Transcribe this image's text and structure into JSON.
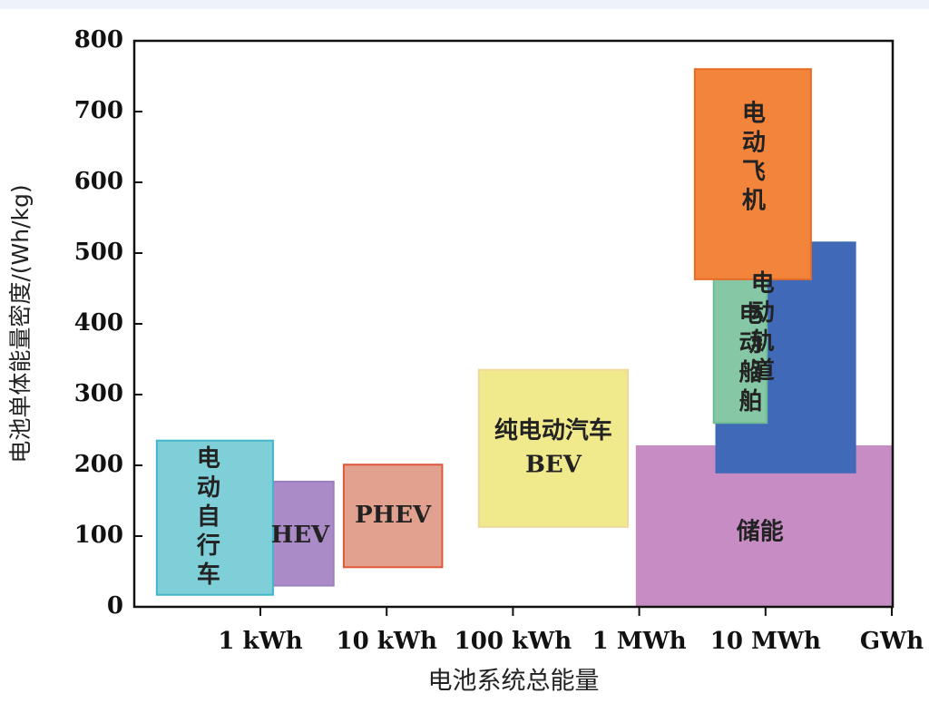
{
  "chart_data": {
    "type": "bubble-region",
    "title": "",
    "xlabel": "电池系统总能量",
    "ylabel": "电池单体能量密度/(Wh/kg)",
    "ylim": [
      0,
      800
    ],
    "yticks": [
      0,
      100,
      200,
      300,
      400,
      500,
      600,
      700,
      800
    ],
    "xlim": [
      -0.85,
      5.0
    ],
    "xticks": [
      {
        "label": "1 kWh",
        "value": 0
      },
      {
        "label": "10 kWh",
        "value": 1
      },
      {
        "label": "100 kWh",
        "value": 2
      },
      {
        "label": "1 MWh",
        "value": 3
      },
      {
        "label": "10 MWh",
        "value": 4
      },
      {
        "label": "GWh",
        "value": 5
      }
    ],
    "x_unit_note": "x values are log10(energy / 1 kWh)",
    "regions": [
      {
        "name": "储能",
        "label_lines": [
          "储能"
        ],
        "x": [
          2.98,
          5.0
        ],
        "y": [
          0,
          227
        ],
        "fill": "#c68cc3",
        "stroke": "#c68cc3",
        "orient": "h"
      },
      {
        "name": "HEV",
        "label_lines": [
          "HEV"
        ],
        "x": [
          0.1,
          0.58
        ],
        "y": [
          30,
          177
        ],
        "fill": "#ab8bc7",
        "stroke": "#9c7fc1",
        "orient": "h"
      },
      {
        "name": "电动自行车",
        "label_lines": [
          "电",
          "动",
          "自",
          "行",
          "车"
        ],
        "x": [
          -0.82,
          0.1
        ],
        "y": [
          17,
          235
        ],
        "fill": "#7fcfd8",
        "stroke": "#41b6cc",
        "orient": "v"
      },
      {
        "name": "PHEV",
        "label_lines": [
          "PHEV"
        ],
        "x": [
          0.66,
          1.44
        ],
        "y": [
          56,
          201
        ],
        "fill": "#e2a18e",
        "stroke": "#e0583a",
        "orient": "h"
      },
      {
        "name": "纯电动汽车 BEV",
        "label_lines": [
          "纯电动汽车",
          "BEV"
        ],
        "x": [
          1.73,
          2.91
        ],
        "y": [
          113,
          335
        ],
        "fill": "#f1ea8c",
        "stroke": "#efd89c",
        "orient": "h"
      },
      {
        "name": "电动船舶",
        "label_lines": [
          "电",
          "动",
          "船",
          "舶"
        ],
        "x": [
          3.61,
          4.71
        ],
        "y": [
          190,
          515
        ],
        "fill": "#4069b8",
        "stroke": "#4069b8",
        "orient": "v"
      },
      {
        "name": "电动轨道",
        "label_lines": [
          "电",
          "动",
          "轨",
          "道"
        ],
        "x": [
          3.59,
          4.01
        ],
        "y": [
          260,
          535
        ],
        "fill": "#86c8a6",
        "stroke": "#6dbd94",
        "orient": "v",
        "box_x": [
          3.59,
          5.67
        ]
      },
      {
        "name": "电动飞机",
        "label_lines": [
          "电",
          "动",
          "飞",
          "机"
        ],
        "x": [
          3.44,
          4.36
        ],
        "y": [
          463,
          760
        ],
        "fill": "#f2843b",
        "stroke": "#e96b26",
        "orient": "v"
      }
    ]
  }
}
